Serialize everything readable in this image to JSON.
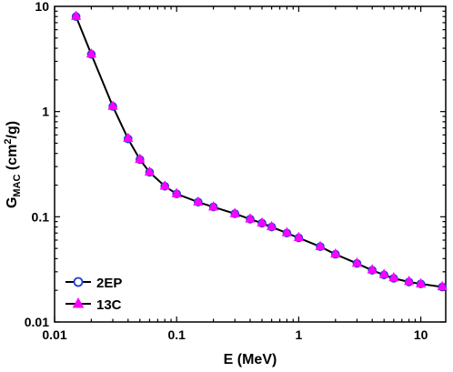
{
  "chart_data": {
    "type": "line",
    "xscale": "log",
    "yscale": "log",
    "xlim": [
      0.01,
      16
    ],
    "ylim": [
      0.01,
      10
    ],
    "xlabel": "E (MeV)",
    "ylabel_main": "G",
    "ylabel_sub": "MAC",
    "ylabel_unit_pre": " (cm",
    "ylabel_unit_sup": "2",
    "ylabel_unit_post": "/g)",
    "xticks": [
      {
        "value": 0.01,
        "label": "0.01"
      },
      {
        "value": 0.1,
        "label": "0.1"
      },
      {
        "value": 1,
        "label": "1"
      },
      {
        "value": 10,
        "label": "10"
      }
    ],
    "yticks": [
      {
        "value": 0.01,
        "label": "0.01"
      },
      {
        "value": 0.1,
        "label": "0.1"
      },
      {
        "value": 1,
        "label": "1"
      },
      {
        "value": 10,
        "label": "10"
      }
    ],
    "grid": false,
    "legend_position": "bottom-left",
    "x": [
      0.015,
      0.02,
      0.03,
      0.04,
      0.05,
      0.06,
      0.08,
      0.1,
      0.15,
      0.2,
      0.3,
      0.4,
      0.5,
      0.6,
      0.8,
      1,
      1.5,
      2,
      3,
      4,
      5,
      6,
      8,
      10,
      15
    ],
    "series": [
      {
        "name": "2EP",
        "marker": "circle",
        "color": "#1f3fd6",
        "fill": "#ffffff",
        "values": [
          8.0,
          3.5,
          1.12,
          0.55,
          0.35,
          0.265,
          0.195,
          0.165,
          0.138,
          0.124,
          0.107,
          0.095,
          0.087,
          0.08,
          0.07,
          0.063,
          0.052,
          0.044,
          0.036,
          0.031,
          0.028,
          0.026,
          0.024,
          0.023,
          0.0215
        ]
      },
      {
        "name": "13C",
        "marker": "triangle",
        "color": "#ff00ff",
        "fill": "#ff00ff",
        "values": [
          8.1,
          3.55,
          1.13,
          0.56,
          0.355,
          0.268,
          0.197,
          0.167,
          0.139,
          0.125,
          0.108,
          0.096,
          0.088,
          0.081,
          0.071,
          0.064,
          0.0525,
          0.0445,
          0.0365,
          0.0315,
          0.0285,
          0.0265,
          0.0245,
          0.0232,
          0.0218
        ]
      }
    ],
    "line_color": "#000000"
  }
}
